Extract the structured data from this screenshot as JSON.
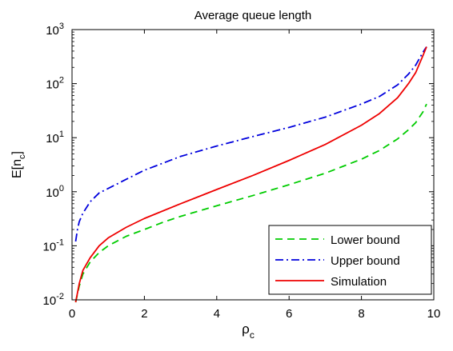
{
  "chart_data": {
    "type": "line",
    "title": "Average queue length",
    "xlabel": "ρ",
    "xlabel_sub": "c",
    "ylabel": "E[n",
    "ylabel_sub": "c",
    "ylabel_close": "]",
    "xlim": [
      0,
      10
    ],
    "ylim": [
      0.01,
      1000
    ],
    "yscale": "log",
    "grid": false,
    "legend_position": "bottom-right",
    "xticks": [
      {
        "value": 0,
        "label": "0"
      },
      {
        "value": 2,
        "label": "2"
      },
      {
        "value": 4,
        "label": "4"
      },
      {
        "value": 6,
        "label": "6"
      },
      {
        "value": 8,
        "label": "8"
      },
      {
        "value": 10,
        "label": "10"
      }
    ],
    "yticks": [
      {
        "value": 0.01,
        "base": "10",
        "exp": "-2"
      },
      {
        "value": 0.1,
        "base": "10",
        "exp": "-1"
      },
      {
        "value": 1,
        "base": "10",
        "exp": "0"
      },
      {
        "value": 10,
        "base": "10",
        "exp": "1"
      },
      {
        "value": 100,
        "base": "10",
        "exp": "2"
      },
      {
        "value": 1000,
        "base": "10",
        "exp": "3"
      }
    ],
    "series": [
      {
        "name": "Lower bound",
        "color": "#00cc00",
        "dash": "dashed",
        "x": [
          0.1,
          0.2,
          0.3,
          0.5,
          0.75,
          1.0,
          1.5,
          2.0,
          2.5,
          3.0,
          4.0,
          5.0,
          6.0,
          7.0,
          8.0,
          8.5,
          9.0,
          9.3,
          9.5,
          9.7,
          9.8
        ],
        "y": [
          0.009,
          0.018,
          0.03,
          0.05,
          0.075,
          0.1,
          0.15,
          0.2,
          0.27,
          0.35,
          0.55,
          0.85,
          1.35,
          2.2,
          4.0,
          5.8,
          9.5,
          14,
          19,
          30,
          42
        ]
      },
      {
        "name": "Upper bound",
        "color": "#0000dd",
        "dash": "dashdot",
        "x": [
          0.1,
          0.15,
          0.2,
          0.3,
          0.5,
          0.75,
          1.0,
          1.5,
          2.0,
          3.0,
          4.0,
          5.0,
          6.0,
          7.0,
          8.0,
          8.5,
          9.0,
          9.3,
          9.5,
          9.7,
          9.8
        ],
        "y": [
          0.12,
          0.2,
          0.28,
          0.4,
          0.65,
          0.95,
          1.15,
          1.7,
          2.5,
          4.5,
          7.0,
          10.5,
          15.5,
          24,
          42,
          58,
          95,
          150,
          220,
          380,
          480
        ]
      },
      {
        "name": "Simulation",
        "color": "#ee0000",
        "dash": "solid",
        "x": [
          0.1,
          0.2,
          0.3,
          0.5,
          0.75,
          1.0,
          1.5,
          2.0,
          3.0,
          4.0,
          5.0,
          6.0,
          7.0,
          8.0,
          8.5,
          9.0,
          9.3,
          9.5,
          9.7,
          9.8
        ],
        "y": [
          0.009,
          0.02,
          0.035,
          0.06,
          0.1,
          0.14,
          0.22,
          0.32,
          0.6,
          1.1,
          2.0,
          3.8,
          7.5,
          17,
          28,
          55,
          100,
          160,
          330,
          480
        ]
      }
    ]
  }
}
